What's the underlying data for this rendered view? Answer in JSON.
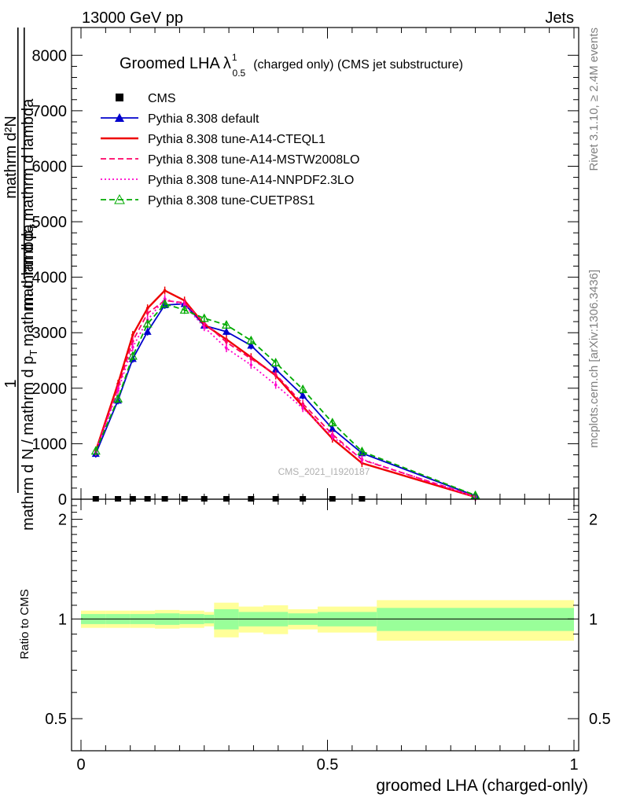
{
  "header": {
    "left": "13000 GeV pp",
    "right": "Jets"
  },
  "side_labels": {
    "top": "Rivet 3.1.10, ≥ 2.4M events",
    "bottom": "mcplots.cern.ch [arXiv:1306.3436]"
  },
  "watermark": "CMS_2021_I1920187",
  "chart_data": [
    {
      "type": "line",
      "title": {
        "main": "Groomed LHA",
        "symbol": "λ",
        "sup": "1",
        "sub": "0.5",
        "rest": "(charged only) (CMS jet substructure)"
      },
      "ylabel": {
        "prefix": "1",
        "denominator": "mathrm d N / mathrm d p",
        "numerator": "mathrm d²N",
        "denominator_2": "mathrm d p",
        "sub_T": "T",
        "suffix": "mathrm d lambda"
      },
      "xlim": [
        0,
        1
      ],
      "ylim": [
        0,
        8500
      ],
      "yticks": [
        0,
        1000,
        2000,
        3000,
        4000,
        5000,
        6000,
        7000,
        8000
      ],
      "ytick_labels": [
        "0",
        "1000",
        "2000",
        "3000",
        "4000",
        "5000",
        "6000",
        "7000",
        "8000"
      ],
      "legend_position": "top-left",
      "data_markers": {
        "name": "CMS",
        "x": [
          0.03,
          0.075,
          0.105,
          0.135,
          0.17,
          0.21,
          0.25,
          0.295,
          0.345,
          0.395,
          0.45,
          0.51,
          0.57
        ],
        "y": [
          0,
          0,
          0,
          0,
          0,
          0,
          0,
          0,
          0,
          0,
          0,
          0,
          0
        ]
      },
      "series": [
        {
          "name": "Pythia 8.308 default",
          "color": "#0000cc",
          "style": "solid",
          "marker": "triangle-filled",
          "x": [
            0.03,
            0.075,
            0.105,
            0.135,
            0.17,
            0.21,
            0.25,
            0.295,
            0.345,
            0.395,
            0.45,
            0.51,
            0.57,
            0.8
          ],
          "y": [
            820,
            1780,
            2530,
            3020,
            3500,
            3520,
            3130,
            3020,
            2770,
            2340,
            1870,
            1270,
            830,
            60
          ]
        },
        {
          "name": "Pythia 8.308 tune-A14-CTEQL1",
          "color": "#ee0000",
          "style": "solid",
          "marker": "none",
          "x": [
            0.03,
            0.075,
            0.105,
            0.135,
            0.17,
            0.21,
            0.25,
            0.295,
            0.345,
            0.395,
            0.45,
            0.51,
            0.57,
            0.8
          ],
          "y": [
            870,
            2080,
            2960,
            3440,
            3760,
            3580,
            3150,
            2880,
            2560,
            2230,
            1670,
            1090,
            650,
            40
          ]
        },
        {
          "name": "Pythia 8.308 tune-A14-MSTW2008LO",
          "color": "#ff0066",
          "style": "dashed",
          "marker": "none",
          "x": [
            0.03,
            0.075,
            0.105,
            0.135,
            0.17,
            0.21,
            0.25,
            0.295,
            0.345,
            0.395,
            0.45,
            0.51,
            0.57,
            0.8
          ],
          "y": [
            850,
            2000,
            2850,
            3350,
            3580,
            3540,
            3180,
            2830,
            2530,
            2250,
            1720,
            1170,
            710,
            50
          ]
        },
        {
          "name": "Pythia 8.308 tune-A14-NNPDF2.3LO",
          "color": "#ff00cc",
          "style": "dotted",
          "marker": "none",
          "x": [
            0.03,
            0.075,
            0.105,
            0.135,
            0.17,
            0.21,
            0.25,
            0.295,
            0.345,
            0.395,
            0.45,
            0.51,
            0.57,
            0.8
          ],
          "y": [
            860,
            1960,
            2740,
            3230,
            3610,
            3500,
            3100,
            2720,
            2420,
            2060,
            1640,
            1130,
            720,
            40
          ]
        },
        {
          "name": "Pythia 8.308 tune-CUETP8S1",
          "color": "#00aa00",
          "style": "dashed",
          "marker": "triangle-open",
          "x": [
            0.03,
            0.075,
            0.105,
            0.135,
            0.17,
            0.21,
            0.25,
            0.295,
            0.345,
            0.395,
            0.45,
            0.51,
            0.57,
            0.8
          ],
          "y": [
            870,
            1810,
            2580,
            3160,
            3520,
            3410,
            3260,
            3140,
            2860,
            2460,
            1980,
            1380,
            860,
            70
          ]
        }
      ]
    },
    {
      "type": "area",
      "ylabel": "Ratio to CMS",
      "xlabel": "groomed LHA (charged-only)",
      "xlim": [
        0,
        1
      ],
      "ylim": [
        0.4,
        2.3
      ],
      "xticks": [
        0,
        0.5,
        1
      ],
      "xtick_labels": [
        "0",
        "0.5",
        "1"
      ],
      "yticks": [
        0.5,
        1,
        2
      ],
      "ytick_labels": [
        "0.5",
        "1",
        "2"
      ],
      "reference_line": 1,
      "bins": {
        "edges": [
          0,
          0.05,
          0.1,
          0.15,
          0.2,
          0.25,
          0.27,
          0.32,
          0.37,
          0.42,
          0.48,
          0.6,
          1.0
        ],
        "inner_band": [
          0.035,
          0.035,
          0.035,
          0.04,
          0.035,
          0.03,
          0.07,
          0.05,
          0.05,
          0.04,
          0.05,
          0.08
        ],
        "outer_band": [
          0.06,
          0.06,
          0.06,
          0.065,
          0.06,
          0.05,
          0.12,
          0.09,
          0.1,
          0.07,
          0.09,
          0.14
        ]
      }
    }
  ]
}
